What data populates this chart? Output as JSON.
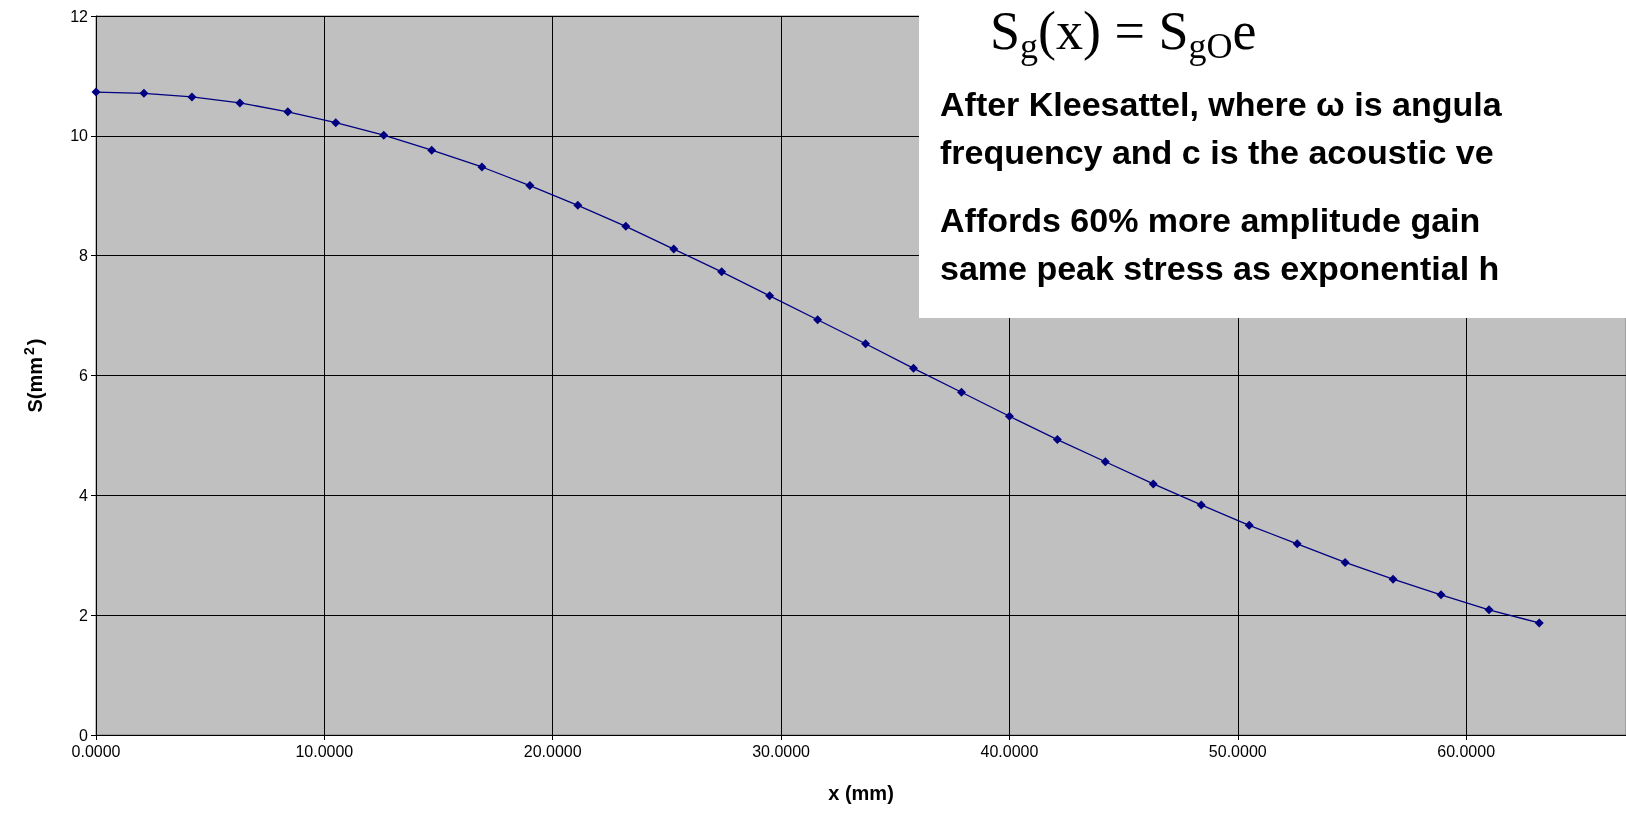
{
  "chart_data": {
    "type": "line",
    "xlabel": "x (mm)",
    "ylabel": "S(mm$^{2}$)",
    "x": [
      0,
      2.1,
      4.2,
      6.3,
      8.4,
      10.5,
      12.6,
      14.7,
      16.9,
      19.0,
      21.1,
      23.2,
      25.3,
      27.4,
      29.5,
      31.6,
      33.7,
      35.8,
      37.9,
      40.0,
      42.1,
      44.2,
      46.3,
      48.4,
      50.5,
      52.6,
      54.7,
      56.8,
      58.9,
      61.0,
      63.2
    ],
    "series": [
      {
        "color": "#000080",
        "values": [
          10.73,
          10.71,
          10.65,
          10.55,
          10.4,
          10.22,
          10.01,
          9.76,
          9.48,
          9.17,
          8.84,
          8.49,
          8.11,
          7.73,
          7.33,
          6.93,
          6.53,
          6.12,
          5.72,
          5.32,
          4.93,
          4.56,
          4.19,
          3.84,
          3.5,
          3.19,
          2.88,
          2.6,
          2.34,
          2.09,
          1.87
        ]
      }
    ],
    "xlim": [
      0,
      67
    ],
    "xticks": [
      {
        "value": 0,
        "label": "0.0000"
      },
      {
        "value": 10,
        "label": "10.0000"
      },
      {
        "value": 20,
        "label": "20.0000"
      },
      {
        "value": 30,
        "label": "30.0000"
      },
      {
        "value": 40,
        "label": "40.0000"
      },
      {
        "value": 50,
        "label": "50.0000"
      },
      {
        "value": 60,
        "label": "60.0000"
      }
    ],
    "ylim": [
      0,
      12
    ],
    "yticks": [
      0,
      2,
      4,
      6,
      8,
      10,
      12
    ],
    "grid": true,
    "marker": "diamond",
    "line_style": "solid",
    "annotations": [
      "S$_{g}$(x) = S$_{gO}$e",
      "After Kleesattel, where ω is angula\nfrequency and c is the acoustic ve",
      "Affords 60% more amplitude gain\nsame peak stress as exponential h"
    ]
  }
}
